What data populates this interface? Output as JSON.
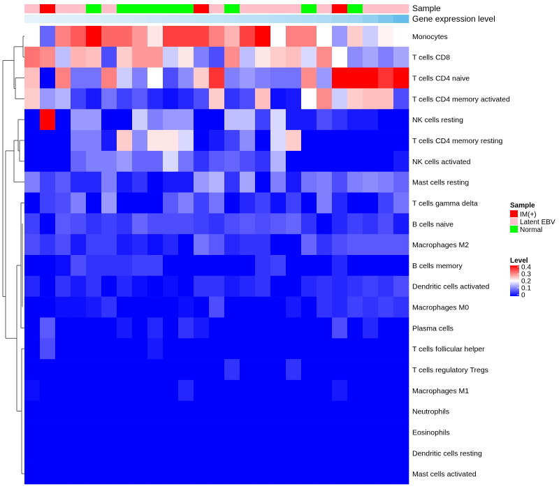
{
  "chart_data": {
    "type": "heatmap",
    "annotation_rows": {
      "sample_label": "Sample",
      "expression_label": "Gene expression level"
    },
    "sample_groups": [
      "Latent EBV",
      "IM(+)",
      "Latent EBV",
      "Latent EBV",
      "Normal",
      "Latent EBV",
      "Normal",
      "Normal",
      "Normal",
      "Normal",
      "Normal",
      "IM(+)",
      "Latent EBV",
      "Normal",
      "Latent EBV",
      "Latent EBV",
      "Latent EBV",
      "Latent EBV",
      "Normal",
      "Latent EBV",
      "IM(+)",
      "Normal",
      "Latent EBV",
      "Latent EBV",
      "Latent EBV"
    ],
    "expression_levels": [
      0.02,
      0.04,
      0.06,
      0.08,
      0.1,
      0.12,
      0.14,
      0.16,
      0.18,
      0.2,
      0.22,
      0.24,
      0.26,
      0.28,
      0.3,
      0.32,
      0.34,
      0.36,
      0.38,
      0.4,
      0.45,
      0.5,
      0.6,
      0.75,
      0.9
    ],
    "rows": [
      {
        "label": "Monocytes",
        "values": [
          0.2,
          0.08,
          0.3,
          0.33,
          0.4,
          0.32,
          0.32,
          0.28,
          0.22,
          0.35,
          0.35,
          0.35,
          0.3,
          0.26,
          0.35,
          0.4,
          0.2,
          0.3,
          0.3,
          0.2,
          0.12,
          0.24,
          0.16,
          0.21,
          0.2
        ]
      },
      {
        "label": "T cells CD8",
        "values": [
          0.31,
          0.29,
          0.15,
          0.26,
          0.25,
          0.06,
          0.24,
          0.28,
          0.28,
          0.16,
          0.22,
          0.1,
          0.06,
          0.29,
          0.15,
          0.22,
          0.24,
          0.25,
          0.17,
          0.29,
          0.2,
          0.11,
          0.13,
          0.1,
          0.13
        ]
      },
      {
        "label": "T cells CD4 naive",
        "values": [
          0.25,
          0.0,
          0.3,
          0.09,
          0.09,
          0.3,
          0.16,
          0.1,
          0.2,
          0.06,
          0.11,
          0.24,
          0.36,
          0.1,
          0.12,
          0.1,
          0.09,
          0.09,
          0.29,
          0.12,
          0.4,
          0.4,
          0.4,
          0.36,
          0.4
        ]
      },
      {
        "label": "T cells CD4 memory activated",
        "values": [
          0.24,
          0.12,
          0.14,
          0.05,
          0.02,
          0.09,
          0.05,
          0.07,
          0.03,
          0.01,
          0.03,
          0.06,
          0.24,
          0.04,
          0.06,
          0.25,
          0.01,
          0.02,
          0.2,
          0.29,
          0.16,
          0.24,
          0.25,
          0.25,
          0.06
        ]
      },
      {
        "label": "NK cells resting",
        "values": [
          0.0,
          0.4,
          0.0,
          0.12,
          0.12,
          0.0,
          0.0,
          0.16,
          0.1,
          0.12,
          0.12,
          0.0,
          0.0,
          0.15,
          0.15,
          0.05,
          0.17,
          0.02,
          0.02,
          0.06,
          0.04,
          0.02,
          0.02,
          0.0,
          0.0
        ]
      },
      {
        "label": "T cells CD4 memory resting",
        "values": [
          0.0,
          0.0,
          0.0,
          0.1,
          0.1,
          0.02,
          0.24,
          0.11,
          0.22,
          0.22,
          0.17,
          0.0,
          0.02,
          0.05,
          0.11,
          0.0,
          0.17,
          0.24,
          0.0,
          0.0,
          0.0,
          0.0,
          0.0,
          0.0,
          0.0
        ]
      },
      {
        "label": "NK cells activated",
        "values": [
          0.0,
          0.0,
          0.0,
          0.08,
          0.1,
          0.1,
          0.12,
          0.08,
          0.08,
          0.17,
          0.09,
          0.04,
          0.07,
          0.08,
          0.06,
          0.04,
          0.14,
          0.0,
          0.0,
          0.0,
          0.0,
          0.0,
          0.0,
          0.0,
          0.02
        ]
      },
      {
        "label": "Mast cells resting",
        "values": [
          0.1,
          0.05,
          0.07,
          0.03,
          0.03,
          0.1,
          0.02,
          0.04,
          0.0,
          0.02,
          0.02,
          0.12,
          0.14,
          0.04,
          0.13,
          0.0,
          0.1,
          0.02,
          0.09,
          0.1,
          0.06,
          0.1,
          0.11,
          0.1,
          0.08
        ]
      },
      {
        "label": "T cells gamma delta",
        "values": [
          0.0,
          0.05,
          0.06,
          0.1,
          0.0,
          0.12,
          0.0,
          0.0,
          0.0,
          0.07,
          0.1,
          0.05,
          0.09,
          0.0,
          0.03,
          0.05,
          0.01,
          0.05,
          0.0,
          0.1,
          0.03,
          0.0,
          0.0,
          0.05,
          0.09
        ]
      },
      {
        "label": "B cells naive",
        "values": [
          0.05,
          0.0,
          0.07,
          0.06,
          0.04,
          0.05,
          0.04,
          0.08,
          0.06,
          0.06,
          0.06,
          0.05,
          0.04,
          0.06,
          0.07,
          0.06,
          0.07,
          0.08,
          0.04,
          0.0,
          0.03,
          0.05,
          0.04,
          0.06,
          0.02
        ]
      },
      {
        "label": "Macrophages M2",
        "values": [
          0.06,
          0.04,
          0.06,
          0.02,
          0.05,
          0.05,
          0.02,
          0.03,
          0.01,
          0.03,
          0.0,
          0.09,
          0.07,
          0.03,
          0.04,
          0.04,
          0.0,
          0.0,
          0.08,
          0.04,
          0.06,
          0.07,
          0.07,
          0.07,
          0.07
        ]
      },
      {
        "label": "B cells memory",
        "values": [
          0.0,
          0.0,
          0.01,
          0.06,
          0.04,
          0.04,
          0.04,
          0.05,
          0.05,
          0.0,
          0.0,
          0.0,
          0.0,
          0.0,
          0.0,
          0.04,
          0.05,
          0.0,
          0.0,
          0.0,
          0.03,
          0.0,
          0.0,
          0.0,
          0.0
        ]
      },
      {
        "label": "Dendritic cells activated",
        "values": [
          0.03,
          0.0,
          0.04,
          0.02,
          0.04,
          0.0,
          0.03,
          0.01,
          0.0,
          0.01,
          0.0,
          0.04,
          0.04,
          0.02,
          0.03,
          0.04,
          0.0,
          0.0,
          0.03,
          0.04,
          0.03,
          0.04,
          0.05,
          0.04,
          0.06
        ]
      },
      {
        "label": "Macrophages M0",
        "values": [
          0.0,
          0.0,
          0.01,
          0.01,
          0.02,
          0.04,
          0.0,
          0.0,
          0.0,
          0.0,
          0.01,
          0.0,
          0.06,
          0.0,
          0.0,
          0.0,
          0.0,
          0.02,
          0.0,
          0.04,
          0.03,
          0.05,
          0.04,
          0.05,
          0.04
        ]
      },
      {
        "label": "Plasma cells",
        "values": [
          0.0,
          0.07,
          0.0,
          0.0,
          0.0,
          0.0,
          0.02,
          0.0,
          0.03,
          0.0,
          0.04,
          0.02,
          0.0,
          0.0,
          0.0,
          0.0,
          0.0,
          0.0,
          0.0,
          0.0,
          0.06,
          0.0,
          0.03,
          0.0,
          0.0
        ]
      },
      {
        "label": "T cells follicular helper",
        "values": [
          0.0,
          0.06,
          0.0,
          0.0,
          0.0,
          0.0,
          0.0,
          0.0,
          0.02,
          0.0,
          0.0,
          0.0,
          0.0,
          0.0,
          0.0,
          0.0,
          0.0,
          0.0,
          0.0,
          0.0,
          0.0,
          0.0,
          0.0,
          0.0,
          0.0
        ]
      },
      {
        "label": "T cells regulatory  Tregs",
        "values": [
          0.0,
          0.0,
          0.0,
          0.0,
          0.0,
          0.0,
          0.0,
          0.0,
          0.0,
          0.0,
          0.0,
          0.0,
          0.0,
          0.04,
          0.0,
          0.0,
          0.0,
          0.04,
          0.0,
          0.0,
          0.0,
          0.0,
          0.0,
          0.0,
          0.0
        ]
      },
      {
        "label": "Macrophages M1",
        "values": [
          0.01,
          0.0,
          0.0,
          0.0,
          0.0,
          0.0,
          0.0,
          0.0,
          0.0,
          0.0,
          0.03,
          0.0,
          0.0,
          0.0,
          0.0,
          0.0,
          0.0,
          0.0,
          0.0,
          0.0,
          0.02,
          0.0,
          0.0,
          0.0,
          0.0
        ]
      },
      {
        "label": "Neutrophils",
        "values": [
          0,
          0,
          0,
          0,
          0,
          0,
          0,
          0,
          0,
          0,
          0,
          0,
          0,
          0,
          0,
          0,
          0,
          0,
          0,
          0,
          0,
          0,
          0,
          0,
          0
        ]
      },
      {
        "label": "Eosinophils",
        "values": [
          0,
          0,
          0,
          0,
          0,
          0,
          0,
          0,
          0,
          0,
          0,
          0,
          0,
          0,
          0,
          0,
          0,
          0,
          0,
          0,
          0,
          0,
          0,
          0,
          0
        ]
      },
      {
        "label": "Dendritic cells resting",
        "values": [
          0,
          0,
          0,
          0,
          0,
          0,
          0,
          0,
          0,
          0,
          0,
          0,
          0,
          0,
          0,
          0,
          0,
          0,
          0,
          0,
          0,
          0,
          0,
          0,
          0
        ]
      },
      {
        "label": "Mast cells activated",
        "values": [
          0,
          0,
          0,
          0,
          0,
          0,
          0,
          0,
          0,
          0,
          0,
          0,
          0,
          0,
          0,
          0,
          0,
          0,
          0,
          0,
          0,
          0,
          0,
          0,
          0
        ]
      }
    ],
    "color_scale": {
      "min": 0,
      "mid": 0.2,
      "max": 0.4,
      "low": "#0000ff",
      "midcolor": "#ffffff",
      "high": "#ff0000"
    },
    "legend": {
      "sample_title": "Sample",
      "sample_entries": [
        {
          "label": "IM(+)",
          "color": "#ff0000"
        },
        {
          "label": "Latent EBV",
          "color": "#ffc0cb"
        },
        {
          "label": "Normal",
          "color": "#00ff00"
        }
      ],
      "level_title": "Level",
      "level_ticks": [
        "0.4",
        "0.3",
        "0.2",
        "0.1",
        "0"
      ],
      "placement": "right"
    },
    "expression_colors": {
      "low": "#e6f3fb",
      "high": "#5ab8e8"
    }
  }
}
